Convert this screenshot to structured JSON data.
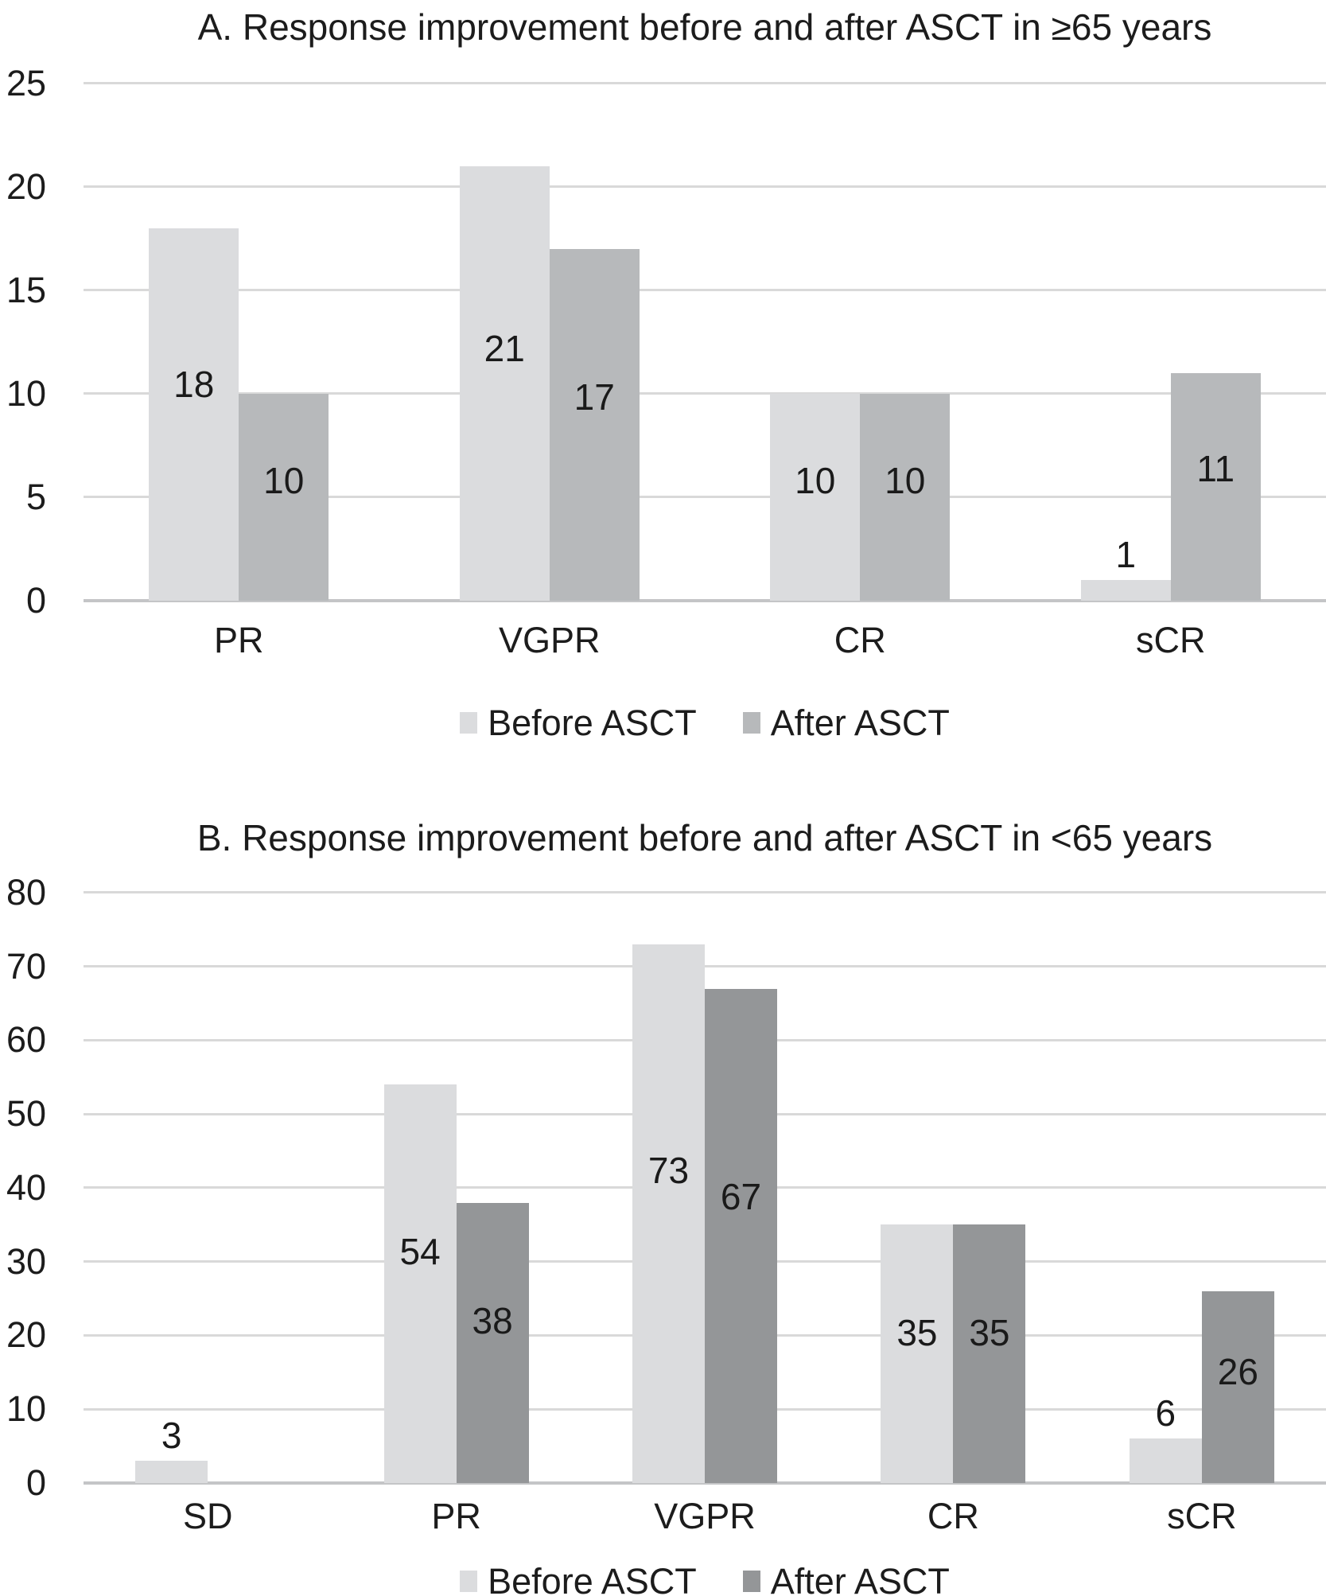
{
  "figure": {
    "background_color": "#ffffff",
    "text_color": "#1c1c1c",
    "gridline_color": "#d9d9d9",
    "axis_line_color": "#c4c5c7"
  },
  "chart_data": [
    {
      "type": "bar",
      "title": "A. Response improvement before and after ASCT in ≥65 years",
      "categories": [
        "PR",
        "VGPR",
        "CR",
        "sCR"
      ],
      "series": [
        {
          "name": "Before ASCT",
          "color": "#dbdcde",
          "values": [
            18,
            21,
            10,
            1
          ]
        },
        {
          "name": "After ASCT",
          "color": "#b7b9bb",
          "values": [
            10,
            17,
            10,
            11
          ]
        }
      ],
      "xlabel": "",
      "ylabel": "",
      "ylim": [
        0,
        25
      ],
      "yticks": [
        0,
        5,
        10,
        15,
        20,
        25
      ],
      "grid": true,
      "legend_position": "bottom",
      "data_labels": true
    },
    {
      "type": "bar",
      "title": "B. Response improvement before and after ASCT in <65 years",
      "categories": [
        "SD",
        "PR",
        "VGPR",
        "CR",
        "sCR"
      ],
      "series": [
        {
          "name": "Before ASCT",
          "color": "#dbdcde",
          "values": [
            3,
            54,
            73,
            35,
            6
          ]
        },
        {
          "name": "After ASCT",
          "color": "#949698",
          "values": [
            null,
            38,
            67,
            35,
            26
          ]
        }
      ],
      "xlabel": "",
      "ylabel": "",
      "ylim": [
        0,
        80
      ],
      "yticks": [
        0,
        10,
        20,
        30,
        40,
        50,
        60,
        70,
        80
      ],
      "grid": true,
      "legend_position": "bottom",
      "data_labels": true
    }
  ]
}
